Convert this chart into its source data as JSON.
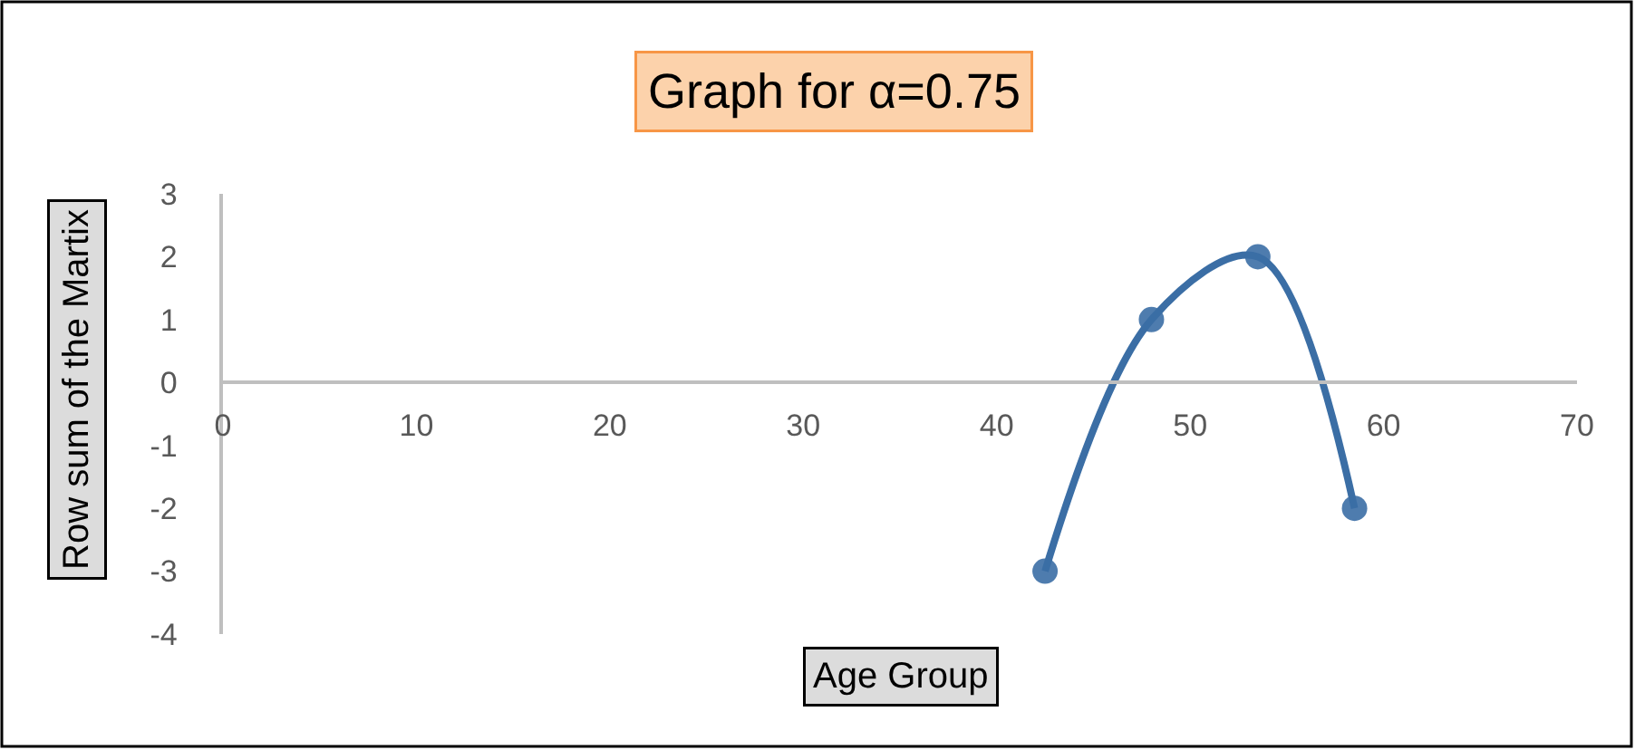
{
  "chart_data": {
    "type": "line",
    "title": "Graph for α=0.75",
    "xlabel": "Age Group",
    "ylabel": "Row sum of the Martix",
    "x": [
      42.5,
      48,
      53.5,
      58.5
    ],
    "series": [
      {
        "color": "#3b6ea5",
        "values": [
          -3,
          1,
          2,
          -2
        ]
      }
    ],
    "xlim": [
      0,
      70
    ],
    "xticks": [
      0,
      10,
      20,
      30,
      40,
      50,
      60,
      70
    ],
    "ylim": [
      -4,
      3
    ],
    "yticks": [
      -4,
      -3,
      -2,
      -1,
      0,
      1,
      2,
      3
    ],
    "marker": "circle",
    "line_style": "solid"
  }
}
